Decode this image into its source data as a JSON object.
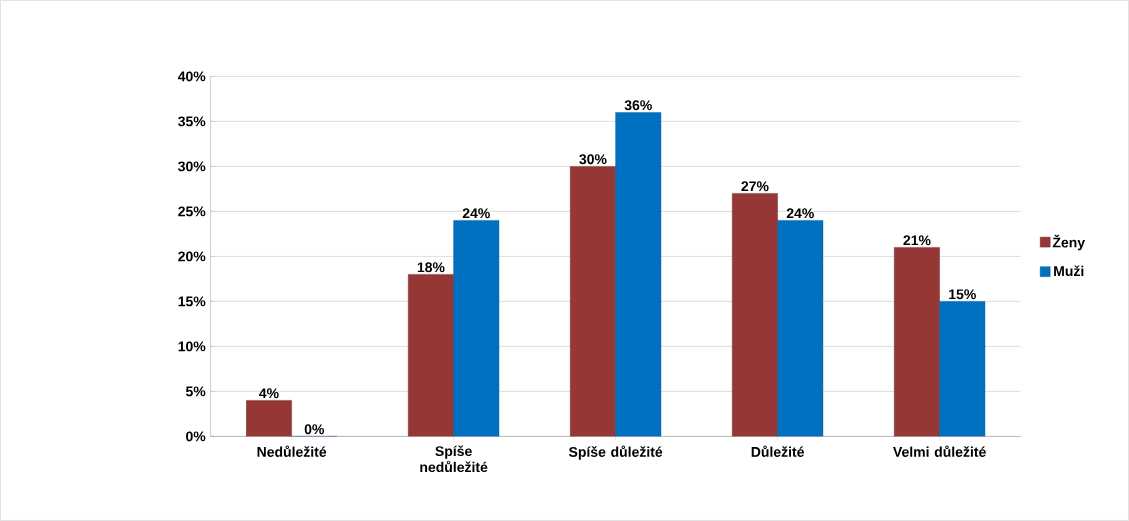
{
  "chart_data": {
    "type": "bar",
    "categories": [
      "Nedůležité",
      "Spíše nedůležité",
      "Spíše důležité",
      "Důležité",
      "Velmi důležité"
    ],
    "series": [
      {
        "name": "Ženy",
        "color": "#953735",
        "values": [
          4,
          18,
          30,
          27,
          21
        ],
        "value_labels": [
          "4%",
          "18%",
          "30%",
          "27%",
          "21%"
        ]
      },
      {
        "name": "Muži",
        "color": "#0070c0",
        "values": [
          0,
          24,
          36,
          24,
          15
        ],
        "value_labels": [
          "0%",
          "24%",
          "36%",
          "24%",
          "15%"
        ]
      }
    ],
    "ylim": [
      0,
      40
    ],
    "yticks": [
      {
        "value": 0,
        "label": "0%"
      },
      {
        "value": 5,
        "label": "5%"
      },
      {
        "value": 10,
        "label": "10%"
      },
      {
        "value": 15,
        "label": "15%"
      },
      {
        "value": 20,
        "label": "20%"
      },
      {
        "value": 25,
        "label": "25%"
      },
      {
        "value": 30,
        "label": "30%"
      },
      {
        "value": 35,
        "label": "35%"
      },
      {
        "value": 40,
        "label": "40%"
      }
    ],
    "grid": "y",
    "legend": "right"
  }
}
